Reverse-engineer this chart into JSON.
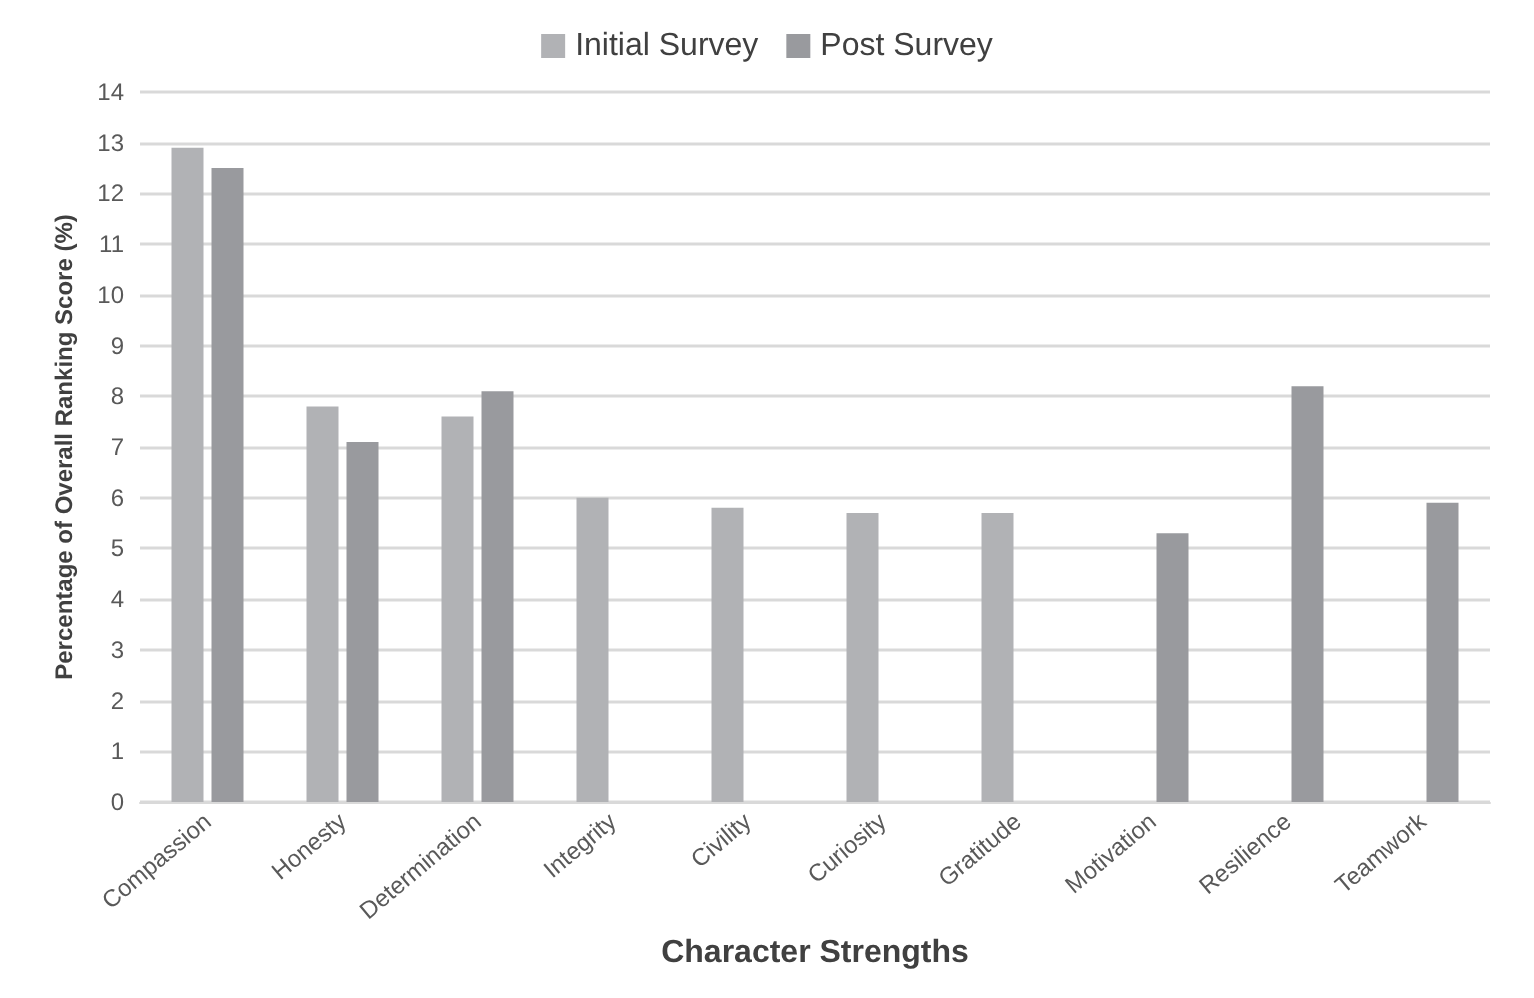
{
  "chart_data": {
    "type": "bar",
    "xlabel": "Character Strengths",
    "ylabel": "Percentage of Overall Ranking Score (%)",
    "categories": [
      "Compassion",
      "Honesty",
      "Determination",
      "Integrity",
      "Civility",
      "Curiosity",
      "Gratitude",
      "Motivation",
      "Resilience",
      "Teamwork"
    ],
    "series": [
      {
        "name": "Initial Survey",
        "color": "#b1b2b5",
        "values": [
          12.9,
          7.8,
          7.6,
          6.0,
          5.8,
          5.7,
          5.7,
          null,
          null,
          null
        ]
      },
      {
        "name": "Post Survey",
        "color": "#999a9e",
        "values": [
          12.5,
          7.1,
          8.1,
          null,
          null,
          null,
          null,
          5.3,
          8.2,
          5.9
        ]
      }
    ],
    "ylim": [
      0,
      14
    ],
    "yticks": [
      0,
      1,
      2,
      3,
      4,
      5,
      6,
      7,
      8,
      9,
      10,
      11,
      12,
      13,
      14
    ],
    "grid": "y",
    "legend": "top"
  }
}
